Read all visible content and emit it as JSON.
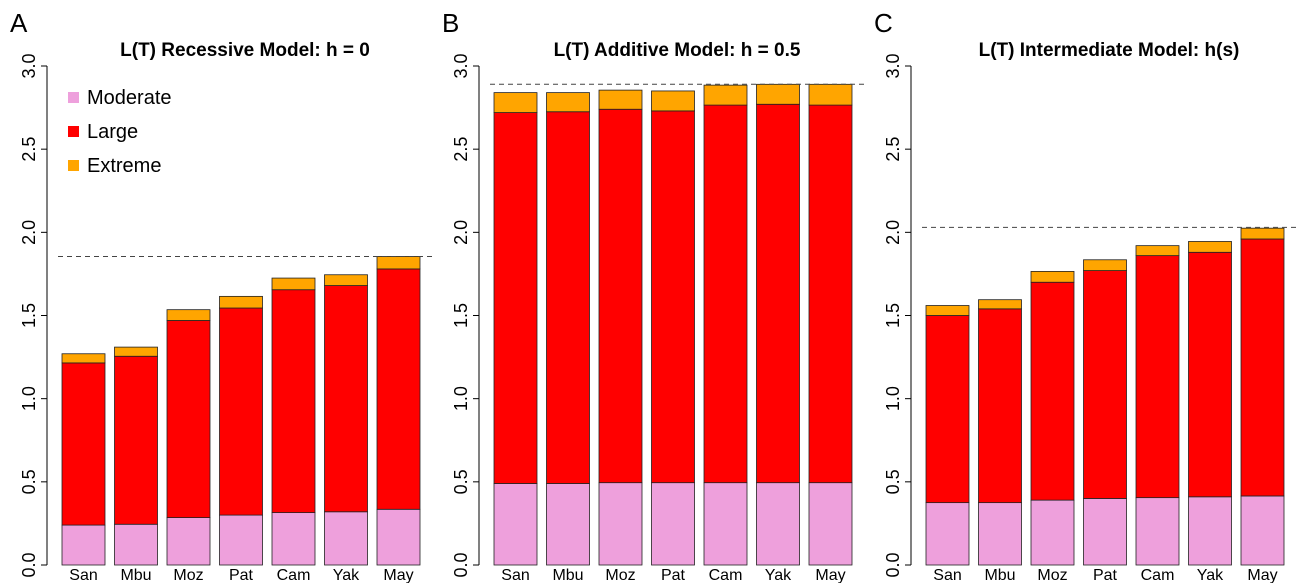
{
  "chart_data": [
    {
      "type": "bar",
      "stacked": true,
      "panel_label": "A",
      "title": "L(T) Recessive Model: h = 0",
      "xlabel": "",
      "ylabel": "",
      "ylim": [
        0,
        3.0
      ],
      "yticks": [
        "0.0",
        "0.5",
        "1.0",
        "1.5",
        "2.0",
        "2.5",
        "3.0"
      ],
      "categories": [
        "San",
        "Mbu",
        "Moz",
        "Pat",
        "Cam",
        "Yak",
        "May"
      ],
      "series": [
        {
          "name": "Moderate",
          "color": "#eea0dc",
          "values": [
            0.24,
            0.245,
            0.285,
            0.3,
            0.315,
            0.32,
            0.335
          ]
        },
        {
          "name": "Large",
          "color": "#ff0000",
          "values": [
            0.975,
            1.01,
            1.185,
            1.245,
            1.34,
            1.36,
            1.445
          ]
        },
        {
          "name": "Extreme",
          "color": "#ffa500",
          "values": [
            0.055,
            0.055,
            0.065,
            0.07,
            0.07,
            0.065,
            0.075
          ]
        }
      ],
      "reference_line": 1.855,
      "legend": "top-left"
    },
    {
      "type": "bar",
      "stacked": true,
      "panel_label": "B",
      "title": "L(T) Additive Model: h = 0.5",
      "xlabel": "",
      "ylabel": "",
      "ylim": [
        0,
        3.0
      ],
      "yticks": [
        "0.0",
        "0.5",
        "1.0",
        "1.5",
        "2.0",
        "2.5",
        "3.0"
      ],
      "categories": [
        "San",
        "Mbu",
        "Moz",
        "Pat",
        "Cam",
        "Yak",
        "May"
      ],
      "series": [
        {
          "name": "Moderate",
          "color": "#eea0dc",
          "values": [
            0.49,
            0.49,
            0.495,
            0.495,
            0.495,
            0.495,
            0.495
          ]
        },
        {
          "name": "Large",
          "color": "#ff0000",
          "values": [
            2.23,
            2.235,
            2.245,
            2.235,
            2.27,
            2.275,
            2.27
          ]
        },
        {
          "name": "Extreme",
          "color": "#ffa500",
          "values": [
            0.12,
            0.115,
            0.115,
            0.12,
            0.12,
            0.12,
            0.125
          ]
        }
      ],
      "reference_line": 2.89
    },
    {
      "type": "bar",
      "stacked": true,
      "panel_label": "C",
      "title": "L(T) Intermediate Model: h(s)",
      "xlabel": "",
      "ylabel": "",
      "ylim": [
        0,
        3.0
      ],
      "yticks": [
        "0.0",
        "0.5",
        "1.0",
        "1.5",
        "2.0",
        "2.5",
        "3.0"
      ],
      "categories": [
        "San",
        "Mbu",
        "Moz",
        "Pat",
        "Cam",
        "Yak",
        "May"
      ],
      "series": [
        {
          "name": "Moderate",
          "color": "#eea0dc",
          "values": [
            0.375,
            0.375,
            0.39,
            0.4,
            0.405,
            0.41,
            0.415
          ]
        },
        {
          "name": "Large",
          "color": "#ff0000",
          "values": [
            1.125,
            1.165,
            1.31,
            1.37,
            1.455,
            1.47,
            1.545
          ]
        },
        {
          "name": "Extreme",
          "color": "#ffa500",
          "values": [
            0.06,
            0.055,
            0.065,
            0.065,
            0.06,
            0.065,
            0.065
          ]
        }
      ],
      "reference_line": 2.03
    }
  ]
}
